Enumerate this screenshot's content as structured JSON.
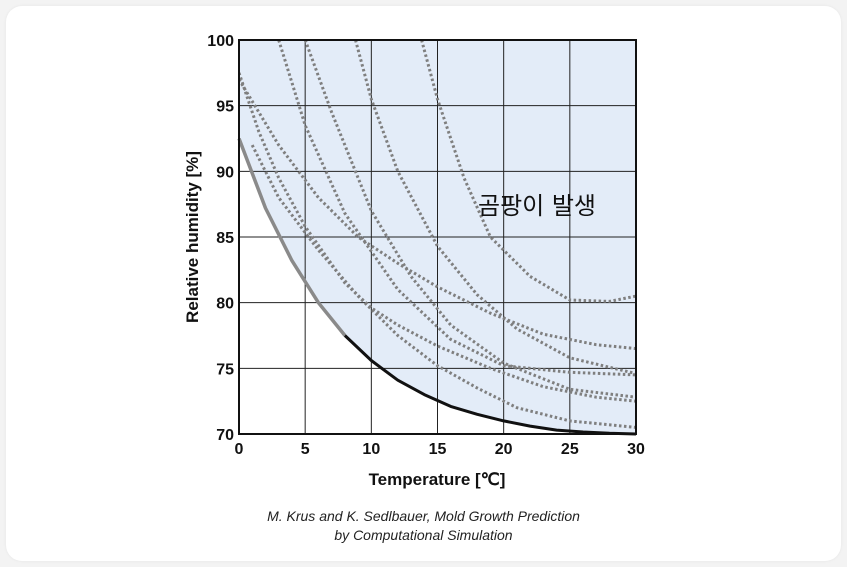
{
  "chart_data": {
    "type": "line",
    "xlabel": "Temperature [℃]",
    "ylabel": "Relative humidity [%]",
    "xlim": [
      0,
      30
    ],
    "ylim": [
      70,
      100
    ],
    "xticks": [
      "0",
      "5",
      "10",
      "15",
      "20",
      "25",
      "30"
    ],
    "yticks": [
      "70",
      "75",
      "80",
      "85",
      "90",
      "95",
      "100"
    ],
    "grid": true,
    "region_label": "곰팡이 발생",
    "colors": {
      "region_fill": "#e3ecf8",
      "threshold": "#111111",
      "gray_boundary": "#8a8a8a",
      "dotted": "#7f7f7f",
      "grid": "#222222"
    },
    "threshold": {
      "x": [
        0,
        2,
        4,
        6,
        8,
        10,
        12,
        14,
        16,
        18,
        20,
        22,
        24,
        26,
        28,
        30
      ],
      "y": [
        92.5,
        87.2,
        83.2,
        80.0,
        77.5,
        75.6,
        74.1,
        73.0,
        72.1,
        71.5,
        71.0,
        70.6,
        70.3,
        70.15,
        70.05,
        70.0
      ]
    },
    "series": [
      {
        "x": [
          3,
          5,
          8,
          12,
          16,
          20,
          25,
          30
        ],
        "y": [
          100,
          93.5,
          86.8,
          81.0,
          77.2,
          75.2,
          74.7,
          74.5
        ]
      },
      {
        "x": [
          5,
          7,
          10,
          13,
          16,
          20,
          25,
          30
        ],
        "y": [
          100,
          94.5,
          87.0,
          82.0,
          78.3,
          75.4,
          73.4,
          72.8
        ]
      },
      {
        "x": [
          8.8,
          10,
          12,
          15,
          18,
          21,
          25,
          30
        ],
        "y": [
          100,
          95.5,
          90.0,
          84.3,
          80.6,
          78.0,
          75.8,
          74.6
        ]
      },
      {
        "x": [
          13.8,
          15,
          17,
          19,
          22,
          25,
          28,
          30
        ],
        "y": [
          100,
          95.5,
          89.5,
          85.0,
          82.0,
          80.2,
          80.1,
          80.5
        ]
      },
      {
        "x": [
          0,
          3,
          6,
          9,
          12,
          15,
          19,
          23,
          27,
          30
        ],
        "y": [
          97.0,
          92.0,
          88.0,
          85.0,
          83.0,
          81.2,
          79.2,
          77.6,
          76.8,
          76.5
        ]
      },
      {
        "x": [
          0,
          1.5,
          3,
          5,
          8,
          10,
          12,
          15,
          19,
          23,
          27,
          30
        ],
        "y": [
          97.5,
          93.0,
          89.5,
          85.8,
          81.5,
          79.6,
          78.3,
          76.7,
          75.0,
          73.6,
          72.8,
          72.5
        ]
      },
      {
        "x": [
          1,
          3,
          6,
          9,
          12,
          15,
          18,
          21,
          25,
          30
        ],
        "y": [
          92.0,
          88.0,
          84.0,
          80.5,
          77.5,
          75.2,
          73.5,
          72.0,
          71.0,
          70.5
        ]
      }
    ]
  },
  "caption": {
    "line1": "M. Krus and K. Sedlbauer, Mold Growth Prediction",
    "line2": "by Computational Simulation"
  }
}
